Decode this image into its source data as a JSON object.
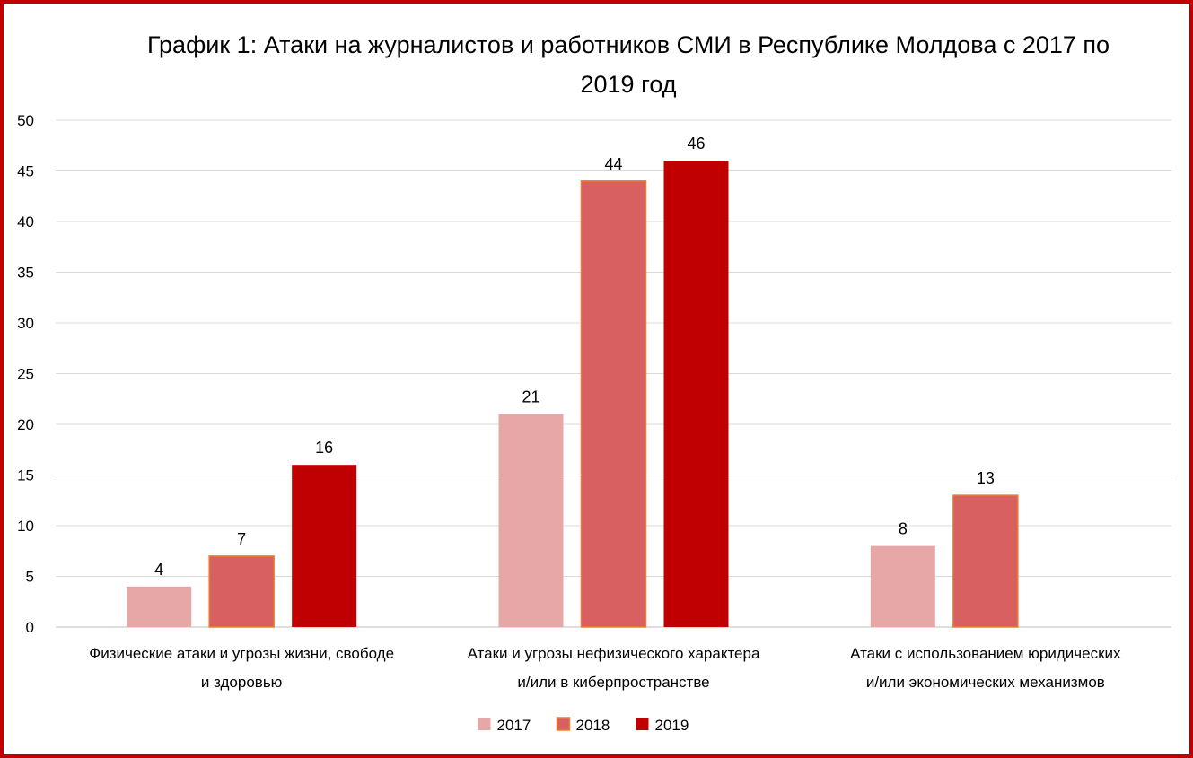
{
  "colors": {
    "frame": "#c00000",
    "grid": "#d9d9d9",
    "axis": "#bfbfbf",
    "bar_outline": "#ed7d31"
  },
  "chart_data": {
    "type": "bar",
    "title": "График 1: Атаки на журналистов и работников СМИ в Республике Молдова с 2017 по 2019 год",
    "xlabel": "",
    "ylabel": "",
    "ylim": [
      0,
      50
    ],
    "yticks": [
      0,
      5,
      10,
      15,
      20,
      25,
      30,
      35,
      40,
      45,
      50
    ],
    "grid": true,
    "legend_position": "bottom",
    "categories": [
      [
        "Физические атаки и угрозы жизни, свободе",
        "и здоровью"
      ],
      [
        "Атаки и угрозы нефизического характера",
        "и/или в киберпространстве"
      ],
      [
        "Атаки с использованием юридических",
        "и/или экономических механизмов"
      ]
    ],
    "series": [
      {
        "name": "2017",
        "color": "#e8a7a7",
        "values": [
          4,
          21,
          8
        ]
      },
      {
        "name": "2018",
        "color": "#d96060",
        "values": [
          7,
          44,
          13
        ]
      },
      {
        "name": "2019",
        "color": "#c00000",
        "values": [
          16,
          46,
          null
        ]
      }
    ]
  }
}
